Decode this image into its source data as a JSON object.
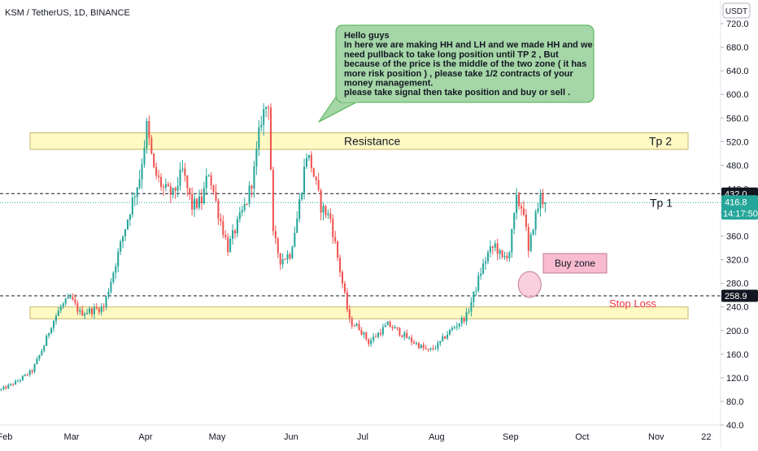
{
  "header": {
    "title": "KSM / TetherUS, 1D, BINANCE",
    "currency_button": "USDT"
  },
  "colors": {
    "up": "#26a69a",
    "down": "#ef5350",
    "zone_fill": "#fff9c4",
    "zone_stroke": "#c9b66b",
    "note_fill": "#a5d6a7",
    "note_stroke": "#4caf50",
    "buy_fill": "#f8bbd0",
    "stop_color": "#f23645",
    "current_tag": "#26a69a",
    "dark_tag": "#131722"
  },
  "annotations": {
    "note_lines": [
      "Hello guys",
      "In here we are making HH and LH and we made HH and we",
      "need pullback to take long position until TP 2 , But",
      "because of the price is the middle of the two zone ( it has",
      "more risk position ) , please take 1/2 contracts of your",
      "money management.",
      "please take signal then take position and buy or sell ."
    ],
    "resistance_label": "Resistance",
    "tp2_label": "Tp 2",
    "tp1_label": "Tp 1",
    "buy_zone_label": "Buy zone",
    "stop_loss_label": "Stop Loss"
  },
  "price_tags": {
    "tp1": "432.0",
    "current_price": "416.8",
    "countdown": "14:17:50",
    "stop": "258.9"
  },
  "chart_data": {
    "type": "candlestick",
    "symbol": "KSM / TetherUS",
    "interval": "1D",
    "exchange": "BINANCE",
    "y_range": [
      40,
      760
    ],
    "y_ticks": [
      40,
      80,
      120,
      160,
      200,
      240,
      280,
      320,
      360,
      400,
      440,
      480,
      520,
      560,
      600,
      640,
      680,
      720
    ],
    "y_tick_labels": [
      "40.0",
      "80.0",
      "120.0",
      "160.0",
      "200.0",
      "240.0",
      "280.0",
      "320.0",
      "360.0",
      "400.0",
      "440.0",
      "480.0",
      "520.0",
      "560.0",
      "600.0",
      "640.0",
      "680.0",
      "720.0"
    ],
    "x_range": [
      "2021-01-30",
      "2021-11-28"
    ],
    "x_tick_dates": [
      "2021-02-01",
      "2021-03-01",
      "2021-04-01",
      "2021-05-01",
      "2021-06-01",
      "2021-07-01",
      "2021-08-01",
      "2021-09-01",
      "2021-10-01",
      "2021-11-01",
      "2021-11-22"
    ],
    "x_tick_labels": [
      "Feb",
      "Mar",
      "Apr",
      "May",
      "Jun",
      "Jul",
      "Aug",
      "Sep",
      "Oct",
      "Nov",
      "22"
    ],
    "levels": {
      "resistance_zone": [
        507,
        535
      ],
      "support_zone": [
        220,
        240
      ],
      "tp1": 432.0,
      "stop_loss": 258.9,
      "current_price": 416.8
    },
    "buy_zone": {
      "date": "2021-09-09",
      "price": 278
    },
    "price_path": [
      [
        "2021-01-30",
        100
      ],
      [
        "2021-02-05",
        112
      ],
      [
        "2021-02-12",
        132
      ],
      [
        "2021-02-17",
        175
      ],
      [
        "2021-02-20",
        210
      ],
      [
        "2021-02-24",
        240
      ],
      [
        "2021-02-28",
        255
      ],
      [
        "2021-03-04",
        230
      ],
      [
        "2021-03-10",
        235
      ],
      [
        "2021-03-14",
        240
      ],
      [
        "2021-03-18",
        300
      ],
      [
        "2021-03-22",
        360
      ],
      [
        "2021-03-26",
        420
      ],
      [
        "2021-03-29",
        460
      ],
      [
        "2021-04-01",
        545
      ],
      [
        "2021-04-04",
        470
      ],
      [
        "2021-04-08",
        440
      ],
      [
        "2021-04-12",
        430
      ],
      [
        "2021-04-16",
        470
      ],
      [
        "2021-04-20",
        410
      ],
      [
        "2021-04-24",
        420
      ],
      [
        "2021-04-27",
        470
      ],
      [
        "2021-05-01",
        400
      ],
      [
        "2021-05-05",
        340
      ],
      [
        "2021-05-09",
        380
      ],
      [
        "2021-05-13",
        420
      ],
      [
        "2021-05-16",
        470
      ],
      [
        "2021-05-19",
        560
      ],
      [
        "2021-05-22",
        590
      ],
      [
        "2021-05-24",
        360
      ],
      [
        "2021-05-27",
        320
      ],
      [
        "2021-05-31",
        330
      ],
      [
        "2021-06-03",
        390
      ],
      [
        "2021-06-07",
        500
      ],
      [
        "2021-06-09",
        480
      ],
      [
        "2021-06-13",
        410
      ],
      [
        "2021-06-17",
        390
      ],
      [
        "2021-06-22",
        280
      ],
      [
        "2021-06-25",
        215
      ],
      [
        "2021-06-29",
        205
      ],
      [
        "2021-07-03",
        180
      ],
      [
        "2021-07-07",
        195
      ],
      [
        "2021-07-11",
        210
      ],
      [
        "2021-07-15",
        200
      ],
      [
        "2021-07-20",
        185
      ],
      [
        "2021-07-24",
        175
      ],
      [
        "2021-07-28",
        165
      ],
      [
        "2021-08-01",
        175
      ],
      [
        "2021-08-05",
        195
      ],
      [
        "2021-08-09",
        210
      ],
      [
        "2021-08-13",
        225
      ],
      [
        "2021-08-16",
        260
      ],
      [
        "2021-08-19",
        300
      ],
      [
        "2021-08-22",
        330
      ],
      [
        "2021-08-25",
        345
      ],
      [
        "2021-08-28",
        320
      ],
      [
        "2021-08-31",
        335
      ],
      [
        "2021-09-03",
        420
      ],
      [
        "2021-09-06",
        405
      ],
      [
        "2021-09-08",
        330
      ],
      [
        "2021-09-10",
        380
      ],
      [
        "2021-09-13",
        425
      ],
      [
        "2021-09-15",
        416.8
      ]
    ]
  }
}
